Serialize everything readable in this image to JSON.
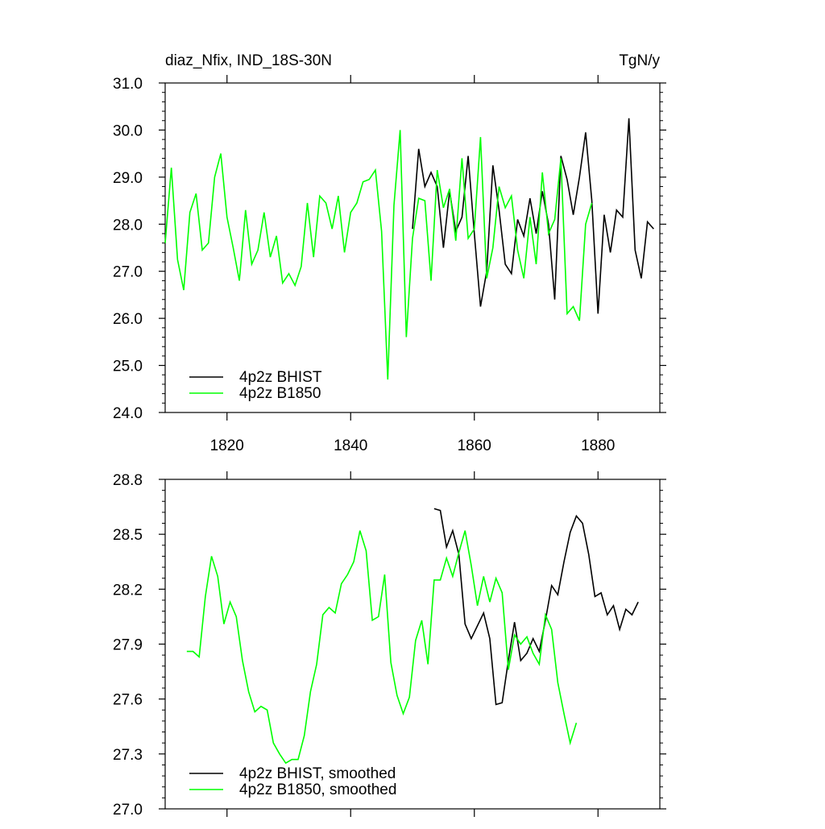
{
  "chart_data": [
    {
      "type": "line",
      "title": "diaz_Nfix, IND_18S-30N",
      "units": "TgN/y",
      "x": [
        1810,
        1811,
        1812,
        1813,
        1814,
        1815,
        1816,
        1817,
        1818,
        1819,
        1820,
        1821,
        1822,
        1823,
        1824,
        1825,
        1826,
        1827,
        1828,
        1829,
        1830,
        1831,
        1832,
        1833,
        1834,
        1835,
        1836,
        1837,
        1838,
        1839,
        1840,
        1841,
        1842,
        1843,
        1844,
        1845,
        1846,
        1847,
        1848,
        1849,
        1850,
        1851,
        1852,
        1853,
        1854,
        1855,
        1856,
        1857,
        1858,
        1859,
        1860,
        1861,
        1862,
        1863,
        1864,
        1865,
        1866,
        1867,
        1868,
        1869,
        1870,
        1871,
        1872,
        1873,
        1874,
        1875,
        1876,
        1877,
        1878,
        1879,
        1880,
        1881,
        1882,
        1883,
        1884,
        1885,
        1886,
        1887,
        1888,
        1889
      ],
      "series": [
        {
          "name": "4p2z BHIST",
          "color": "#000000",
          "values": [
            null,
            null,
            null,
            null,
            null,
            null,
            null,
            null,
            null,
            null,
            null,
            null,
            null,
            null,
            null,
            null,
            null,
            null,
            null,
            null,
            null,
            null,
            null,
            null,
            null,
            null,
            null,
            null,
            null,
            null,
            null,
            null,
            null,
            null,
            null,
            null,
            null,
            null,
            null,
            null,
            27.9,
            29.6,
            28.8,
            29.1,
            28.8,
            27.5,
            28.7,
            27.85,
            28.15,
            29.45,
            27.8,
            26.25,
            27.0,
            29.25,
            28.3,
            27.15,
            26.95,
            28.1,
            27.75,
            28.55,
            27.8,
            28.7,
            28.0,
            26.4,
            29.45,
            28.95,
            28.2,
            29.0,
            29.95,
            28.5,
            26.1,
            28.2,
            27.4,
            28.3,
            28.15,
            30.25,
            27.45,
            26.85,
            28.05,
            27.9
          ]
        },
        {
          "name": "4p2z B1850",
          "color": "#00ff00",
          "values": [
            27.6,
            29.2,
            27.25,
            26.6,
            28.25,
            28.65,
            27.45,
            27.6,
            29.0,
            29.5,
            28.15,
            27.5,
            26.8,
            28.3,
            27.15,
            27.45,
            28.25,
            27.3,
            27.75,
            26.75,
            26.95,
            26.7,
            27.1,
            28.45,
            27.3,
            28.6,
            28.45,
            27.9,
            28.6,
            27.4,
            28.25,
            28.45,
            28.9,
            28.95,
            29.15,
            27.85,
            24.7,
            28.4,
            30.0,
            25.6,
            27.7,
            28.55,
            28.5,
            26.8,
            29.15,
            28.35,
            28.75,
            27.65,
            29.4,
            27.7,
            27.9,
            29.85,
            26.85,
            27.5,
            28.8,
            28.35,
            28.6,
            27.45,
            26.85,
            28.15,
            27.15,
            29.1,
            27.8,
            28.1,
            29.4,
            26.1,
            26.25,
            25.95,
            28.0,
            28.45,
            null,
            null,
            null,
            null,
            null,
            null,
            null,
            null,
            null,
            null
          ]
        }
      ],
      "xlim": [
        1810,
        1890
      ],
      "xticks": [
        1820,
        1840,
        1860,
        1880
      ],
      "ylim": [
        24,
        31
      ],
      "yticks": [
        {
          "value": 24,
          "label": "24.0"
        },
        {
          "value": 25,
          "label": "25.0"
        },
        {
          "value": 26,
          "label": "26.0"
        },
        {
          "value": 27,
          "label": "27.0"
        },
        {
          "value": 28,
          "label": "28.0"
        },
        {
          "value": 29,
          "label": "29.0"
        },
        {
          "value": 30,
          "label": "30.0"
        },
        {
          "value": 31,
          "label": "31.0"
        }
      ],
      "legend": "lower left"
    },
    {
      "type": "line",
      "x": [
        1813.5,
        1814.5,
        1815.5,
        1816.5,
        1817.5,
        1818.5,
        1819.5,
        1820.5,
        1821.5,
        1822.5,
        1823.5,
        1824.5,
        1825.5,
        1826.5,
        1827.5,
        1828.5,
        1829.5,
        1830.5,
        1831.5,
        1832.5,
        1833.5,
        1834.5,
        1835.5,
        1836.5,
        1837.5,
        1838.5,
        1839.5,
        1840.5,
        1841.5,
        1842.5,
        1843.5,
        1844.5,
        1845.5,
        1846.5,
        1847.5,
        1848.5,
        1849.5,
        1850.5,
        1851.5,
        1852.5,
        1853.5,
        1854.5,
        1855.5,
        1856.5,
        1857.5,
        1858.5,
        1859.5,
        1860.5,
        1861.5,
        1862.5,
        1863.5,
        1864.5,
        1865.5,
        1866.5,
        1867.5,
        1868.5,
        1869.5,
        1870.5,
        1871.5,
        1872.5,
        1873.5,
        1874.5,
        1875.5,
        1876.5,
        1877.5,
        1878.5,
        1879.5,
        1880.5,
        1881.5,
        1882.5,
        1883.5,
        1884.5,
        1885.5,
        1886.5
      ],
      "series": [
        {
          "name": "4p2z BHIST, smoothed",
          "color": "#000000",
          "values": [
            null,
            null,
            null,
            null,
            null,
            null,
            null,
            null,
            null,
            null,
            null,
            null,
            null,
            null,
            null,
            null,
            null,
            null,
            null,
            null,
            null,
            null,
            null,
            null,
            null,
            null,
            null,
            null,
            null,
            null,
            null,
            null,
            null,
            null,
            null,
            null,
            null,
            null,
            null,
            null,
            28.64,
            28.63,
            28.43,
            28.52,
            28.39,
            28.01,
            27.93,
            28.0,
            28.07,
            27.93,
            27.57,
            27.58,
            27.81,
            28.02,
            27.81,
            27.85,
            27.93,
            27.86,
            28.03,
            28.22,
            28.17,
            28.35,
            28.51,
            28.6,
            28.56,
            28.39,
            28.16,
            28.18,
            28.06,
            28.11,
            27.98,
            28.09,
            28.06,
            28.13
          ]
        },
        {
          "name": "4p2z B1850, smoothed",
          "color": "#00ff00",
          "values": [
            27.86,
            27.86,
            27.83,
            28.16,
            28.38,
            28.27,
            28.01,
            28.13,
            28.05,
            27.81,
            27.64,
            27.53,
            27.56,
            27.54,
            27.36,
            27.3,
            27.25,
            27.27,
            27.27,
            27.4,
            27.64,
            27.79,
            28.06,
            28.1,
            28.07,
            28.23,
            28.28,
            28.35,
            28.52,
            28.41,
            28.03,
            28.05,
            28.28,
            27.8,
            27.62,
            27.52,
            27.61,
            27.92,
            28.03,
            27.79,
            28.25,
            28.25,
            28.37,
            28.27,
            28.4,
            28.52,
            28.33,
            28.11,
            28.27,
            28.13,
            28.26,
            28.18,
            27.76,
            27.95,
            27.9,
            27.94,
            27.85,
            27.79,
            28.06,
            27.98,
            27.69,
            27.52,
            27.36,
            27.47,
            null,
            null,
            null,
            null,
            null,
            null,
            null,
            null,
            null,
            null
          ]
        }
      ],
      "xlim": [
        1810,
        1890
      ],
      "xticks": [
        1820,
        1840,
        1860,
        1880
      ],
      "ylim": [
        27,
        28.8
      ],
      "yticks": [
        {
          "value": 27,
          "label": "27.0"
        },
        27.3,
        27.6,
        27.9,
        28.2,
        28.5,
        28.8
      ],
      "legend": "lower left"
    }
  ]
}
